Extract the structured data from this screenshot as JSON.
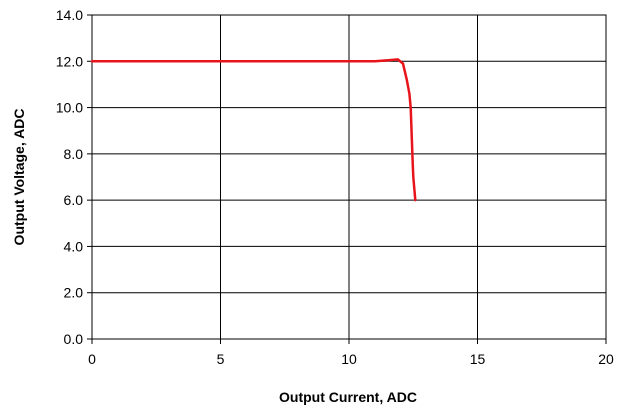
{
  "chart_data": {
    "type": "line",
    "title": "",
    "xlabel": "Output Current, ADC",
    "ylabel": "Output Voltage, ADC",
    "xlim": [
      0,
      20
    ],
    "ylim": [
      0,
      14
    ],
    "x_ticks": [
      0,
      5,
      10,
      15,
      20
    ],
    "x_tick_labels": [
      "0",
      "5",
      "10",
      "15",
      "20"
    ],
    "y_ticks": [
      0,
      2,
      4,
      6,
      8,
      10,
      12,
      14
    ],
    "y_tick_labels": [
      "0.0",
      "2.0",
      "4.0",
      "6.0",
      "8.0",
      "10.0",
      "12.0",
      "14.0"
    ],
    "grid": true,
    "legend": "none",
    "series": [
      {
        "color": "#e8141b",
        "x": [
          0,
          10,
          11,
          11.6,
          11.9,
          12.1,
          12.25,
          12.35,
          12.4,
          12.42,
          12.44,
          12.46,
          12.48,
          12.5,
          12.58
        ],
        "y": [
          12.0,
          12.0,
          12.0,
          12.05,
          12.08,
          11.9,
          11.2,
          10.6,
          10.0,
          9.4,
          8.8,
          8.2,
          7.6,
          7.0,
          6.0
        ]
      }
    ]
  }
}
